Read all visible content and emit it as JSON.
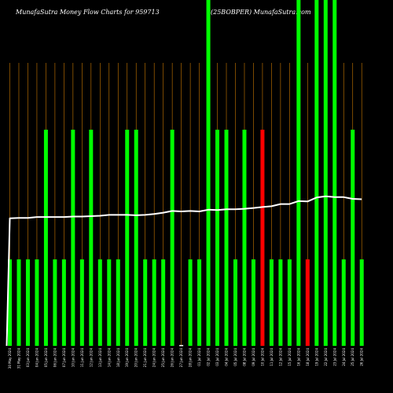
{
  "header": {
    "title_left": "MunafaSutra  Money Flow  Charts for 959713",
    "title_right": "(25BOBPER) MunafaSutra.com"
  },
  "colors": {
    "background": "#000000",
    "bar_up": "#00ff00",
    "bar_down": "#ff0000",
    "bar_neutral": "#ffffff",
    "grid": "#cc7a00",
    "line": "#ffffff"
  },
  "chart_data": {
    "type": "bar",
    "grid": true,
    "categories": [
      "30 May 2024",
      "31 May 2024",
      "03 Jun 2024",
      "04 Jun 2024",
      "05 Jun 2024",
      "06 Jun 2024",
      "07 Jun 2024",
      "10 Jun 2024",
      "11 Jun 2024",
      "12 Jun 2024",
      "13 Jun 2024",
      "14 Jun 2024",
      "18 Jun 2024",
      "19 Jun 2024",
      "20 Jun 2024",
      "21 Jun 2024",
      "24 Jun 2024",
      "25 Jun 2024",
      "26 Jun 2024",
      "27 Jun 2024",
      "28 Jun 2024",
      "01 Jul 2024",
      "02 Jul 2024",
      "03 Jul 2024",
      "04 Jul 2024",
      "05 Jul 2024",
      "08 Jul 2024",
      "09 Jul 2024",
      "10 Jul 2024",
      "11 Jul 2024",
      "12 Jul 2024",
      "15 Jul 2024",
      "16 Jul 2024",
      "18 Jul 2024",
      "19 Jul 2024",
      "22 Jul 2024",
      "23 Jul 2024",
      "24 Jul 2024",
      "25 Jul 2024",
      "26 Jul 2024"
    ],
    "series": [
      {
        "values": [
          2,
          2,
          2,
          2,
          5,
          2,
          2,
          5,
          2,
          5,
          2,
          2,
          2,
          5,
          5,
          2,
          2,
          2,
          5,
          0.02,
          2,
          2,
          8,
          5,
          5,
          2,
          5,
          2,
          5,
          2,
          2,
          2,
          8,
          2,
          8,
          8,
          8,
          2,
          5,
          2
        ],
        "colors": [
          "up",
          "up",
          "up",
          "up",
          "up",
          "up",
          "up",
          "up",
          "up",
          "up",
          "up",
          "up",
          "up",
          "up",
          "up",
          "up",
          "up",
          "up",
          "up",
          "neutral",
          "up",
          "up",
          "up",
          "up",
          "up",
          "up",
          "up",
          "up",
          "down",
          "up",
          "up",
          "up",
          "up",
          "down",
          "up",
          "up",
          "up",
          "up",
          "up",
          "up"
        ]
      },
      {
        "type": "line",
        "values": [
          2.95,
          2.96,
          2.96,
          2.98,
          2.98,
          2.98,
          2.98,
          2.99,
          2.99,
          3.0,
          3.01,
          3.03,
          3.03,
          3.03,
          3.02,
          3.03,
          3.05,
          3.08,
          3.12,
          3.11,
          3.12,
          3.11,
          3.15,
          3.14,
          3.16,
          3.16,
          3.17,
          3.19,
          3.21,
          3.23,
          3.28,
          3.28,
          3.35,
          3.34,
          3.43,
          3.46,
          3.44,
          3.44,
          3.4,
          3.39
        ]
      }
    ],
    "ylim": [
      0,
      8
    ]
  }
}
